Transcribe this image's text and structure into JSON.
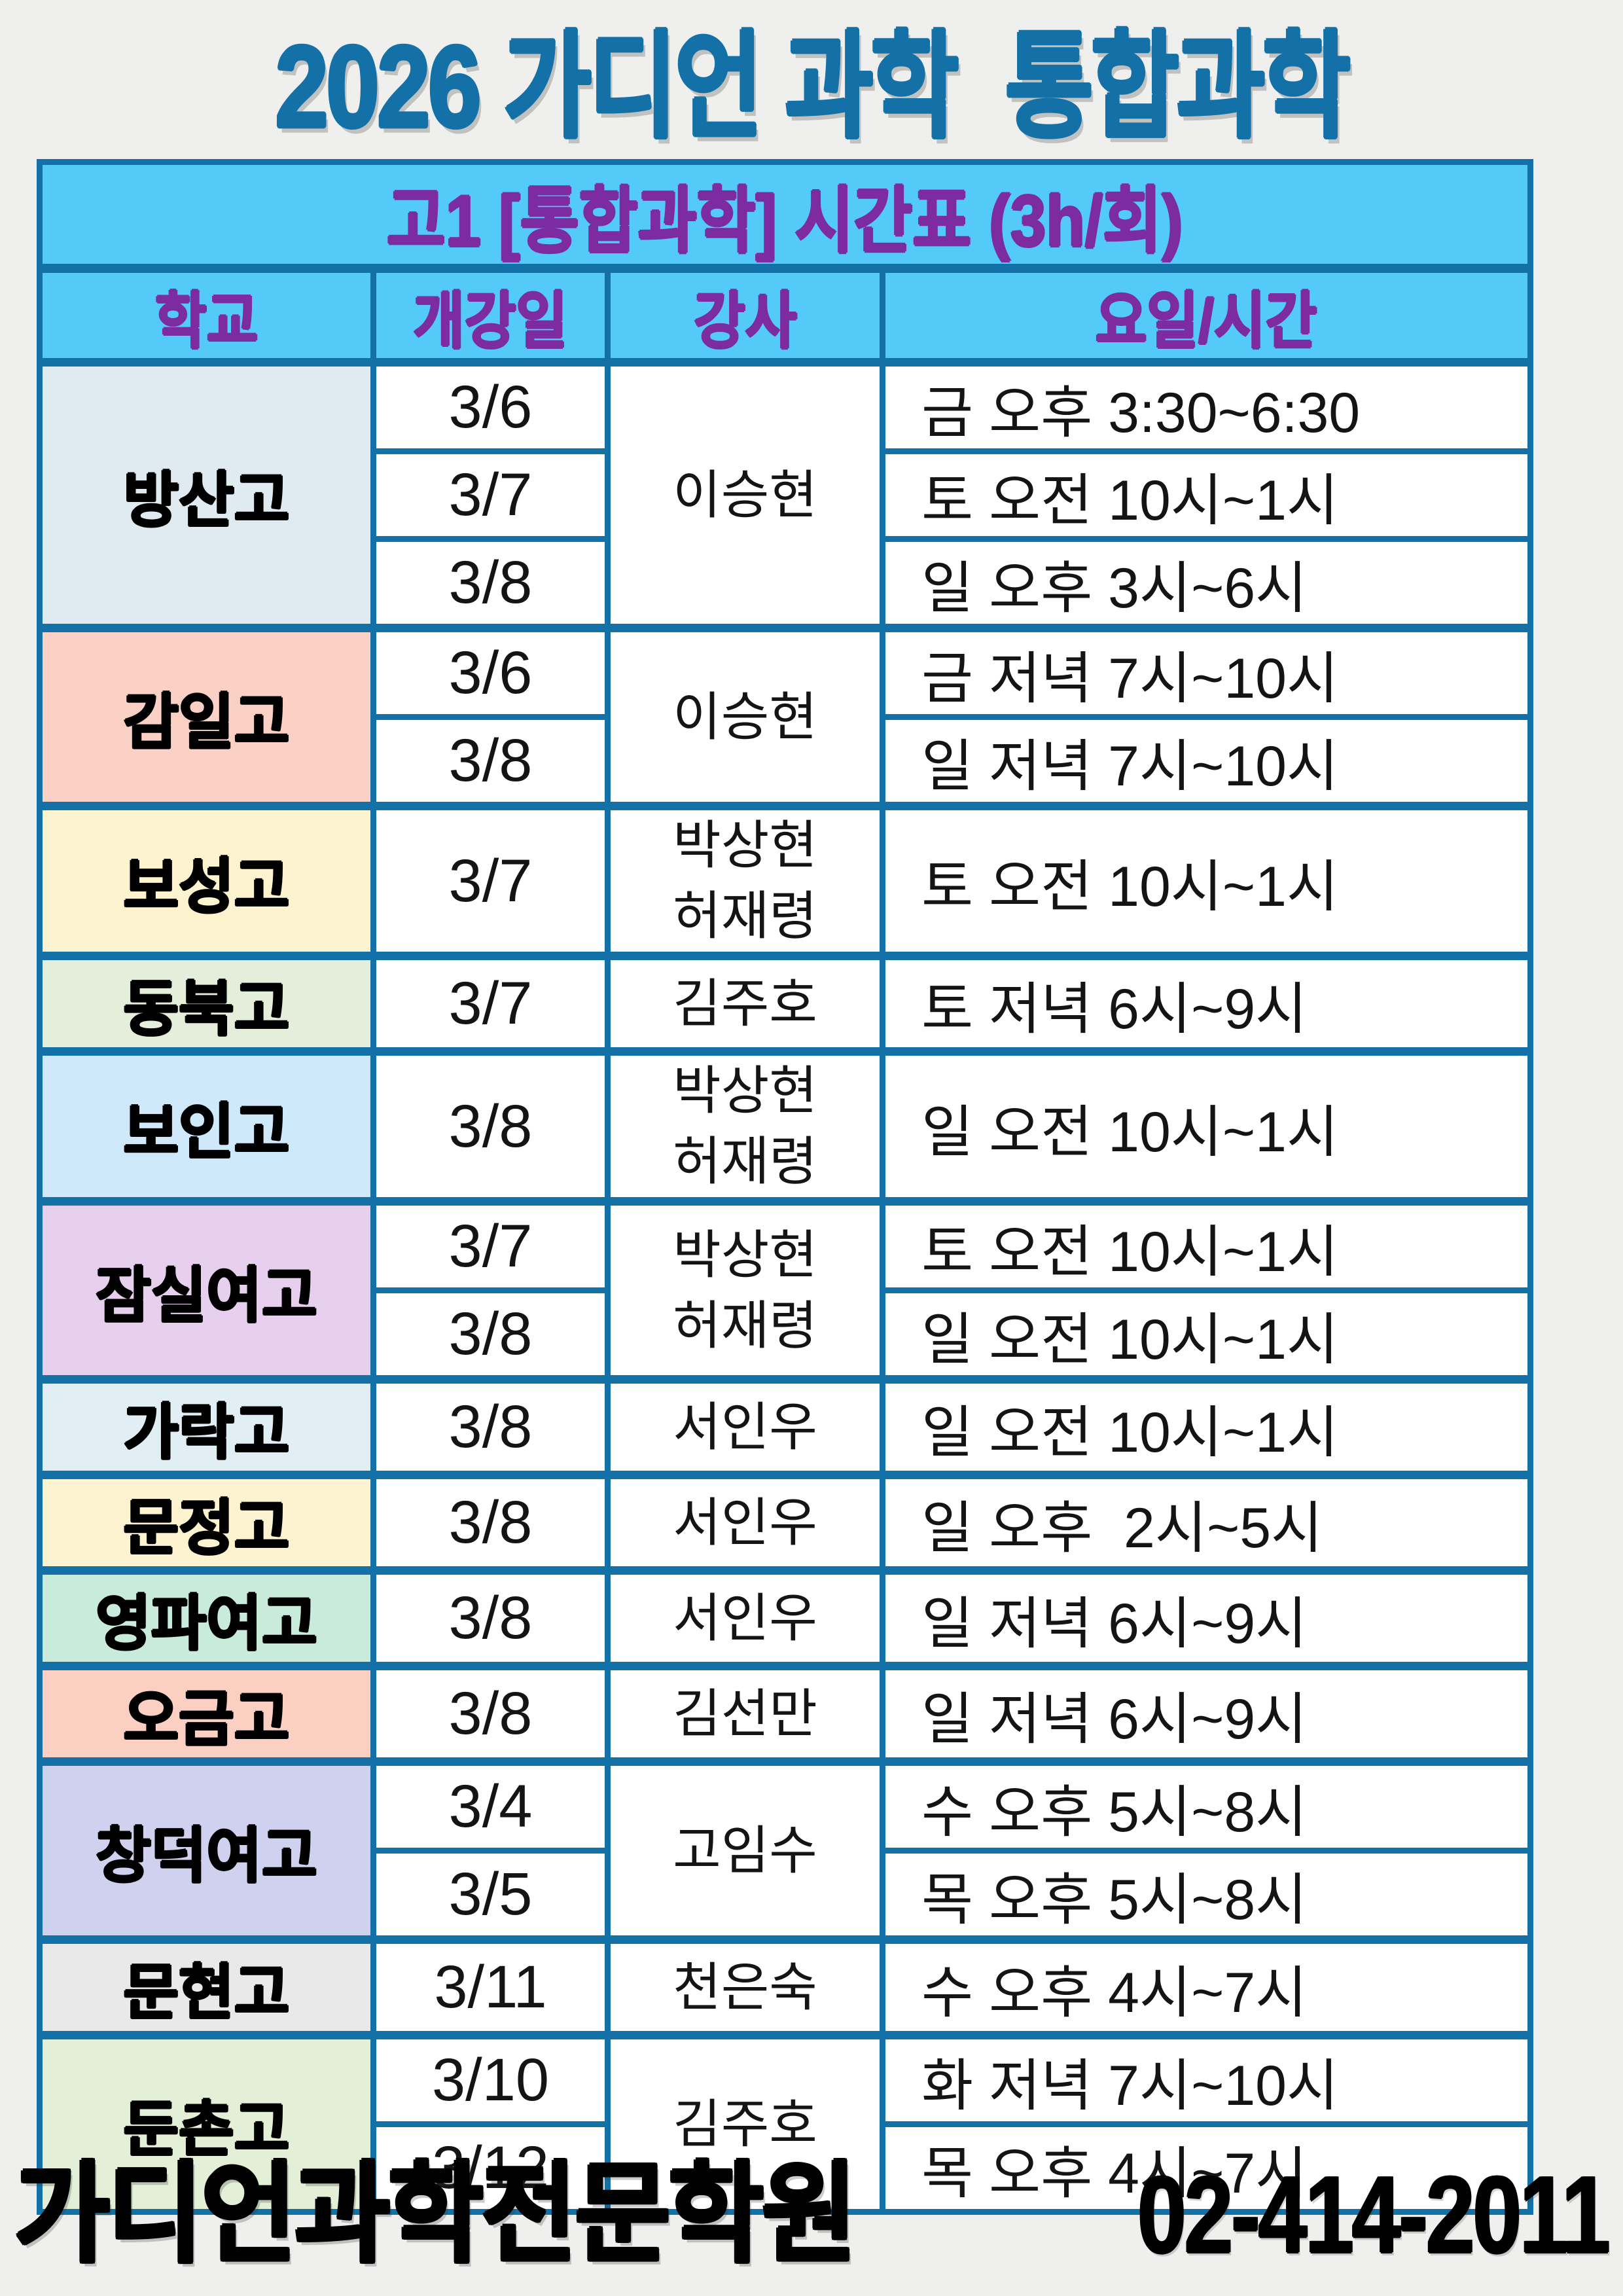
{
  "colors": {
    "page_bg": "#efefee",
    "accent": "#1371a7",
    "banner_bg": "#54caf8",
    "purple": "#7c2ba0"
  },
  "title": {
    "text": "2026 가디언 과학  통합과학"
  },
  "table": {
    "banner": "고1 [통합과학] 시간표 (3h/회)",
    "columns": [
      "학교",
      "개강일",
      "강사",
      "요일/시간"
    ],
    "schools": [
      {
        "name": "방산고",
        "color": "#e0ebf1",
        "teachers": [
          "이승현"
        ],
        "sessions": [
          {
            "date": "3/6",
            "time": "금 오후 3:30~6:30"
          },
          {
            "date": "3/7",
            "time": "토 오전 10시~1시"
          },
          {
            "date": "3/8",
            "time": "일 오후 3시~6시"
          }
        ]
      },
      {
        "name": "감일고",
        "color": "#fad1c4",
        "teachers": [
          "이승현"
        ],
        "sessions": [
          {
            "date": "3/6",
            "time": "금 저녁 7시~10시"
          },
          {
            "date": "3/8",
            "time": "일 저녁 7시~10시"
          }
        ]
      },
      {
        "name": "보성고",
        "color": "#fdf3cf",
        "teachers": [
          "박상현",
          "허재령"
        ],
        "sessions": [
          {
            "date": "3/7",
            "time": "토 오전 10시~1시"
          }
        ]
      },
      {
        "name": "동북고",
        "color": "#e5eeda",
        "teachers": [
          "김주호"
        ],
        "sessions": [
          {
            "date": "3/7",
            "time": "토 저녁 6시~9시"
          }
        ]
      },
      {
        "name": "보인고",
        "color": "#cfe9fa",
        "teachers": [
          "박상현",
          "허재령"
        ],
        "sessions": [
          {
            "date": "3/8",
            "time": "일 오전 10시~1시"
          }
        ]
      },
      {
        "name": "잠실여고",
        "color": "#e7d0ee",
        "teachers": [
          "박상현",
          "허재령"
        ],
        "sessions": [
          {
            "date": "3/7",
            "time": "토 오전 10시~1시"
          },
          {
            "date": "3/8",
            "time": "일 오전 10시~1시"
          }
        ]
      },
      {
        "name": "가락고",
        "color": "#e1eff5",
        "teachers": [
          "서인우"
        ],
        "sessions": [
          {
            "date": "3/8",
            "time": "일 오전 10시~1시"
          }
        ]
      },
      {
        "name": "문정고",
        "color": "#fdf3d0",
        "teachers": [
          "서인우"
        ],
        "sessions": [
          {
            "date": "3/8",
            "time": "일 오후  2시~5시"
          }
        ]
      },
      {
        "name": "영파여고",
        "color": "#c9ebdb",
        "teachers": [
          "서인우"
        ],
        "sessions": [
          {
            "date": "3/8",
            "time": "일 저녁 6시~9시"
          }
        ]
      },
      {
        "name": "오금고",
        "color": "#fbcfc2",
        "teachers": [
          "김선만"
        ],
        "sessions": [
          {
            "date": "3/8",
            "time": "일 저녁 6시~9시"
          }
        ]
      },
      {
        "name": "창덕여고",
        "color": "#d0d1ee",
        "teachers": [
          "고임수"
        ],
        "sessions": [
          {
            "date": "3/4",
            "time": "수 오후 5시~8시"
          },
          {
            "date": "3/5",
            "time": "목 오후 5시~8시"
          }
        ]
      },
      {
        "name": "문현고",
        "color": "#e9e9ea",
        "teachers": [
          "천은숙"
        ],
        "sessions": [
          {
            "date": "3/11",
            "time": "수 오후 4시~7시"
          }
        ]
      },
      {
        "name": "둔촌고",
        "color": "#e3f0d7",
        "teachers": [
          "김주호"
        ],
        "sessions": [
          {
            "date": "3/10",
            "time": "화 저녁 7시~10시"
          },
          {
            "date": "3/12",
            "time": "목 오후 4시~7시"
          }
        ]
      }
    ]
  },
  "footer": {
    "academy": "가디언과학전문학원",
    "phone": "02-414-2011"
  }
}
